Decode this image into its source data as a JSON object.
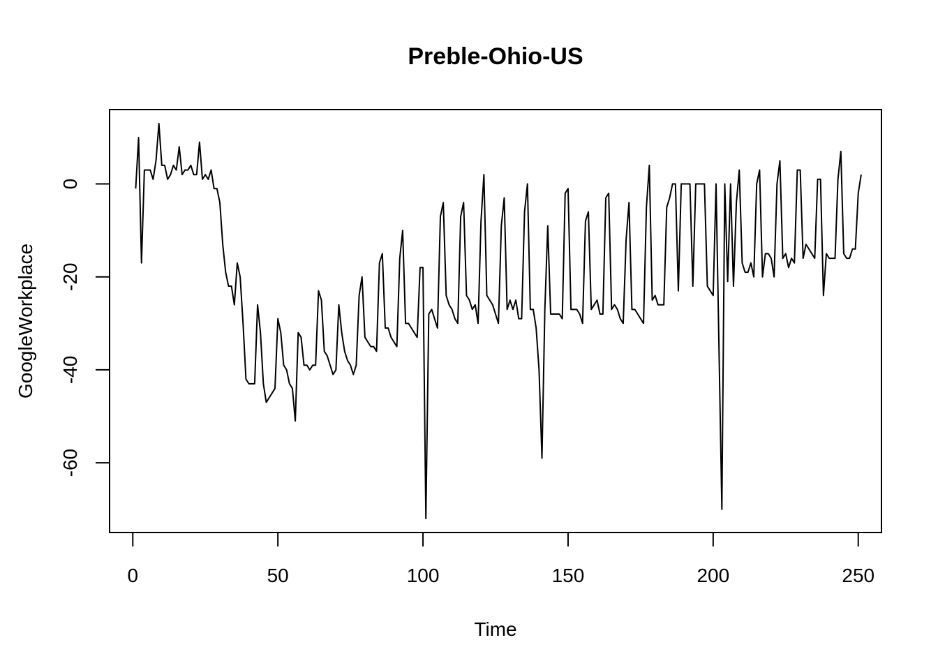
{
  "chart_data": {
    "type": "line",
    "title": "Preble-Ohio-US",
    "xlabel": "Time",
    "ylabel": "GoogleWorkplace",
    "xlim": [
      -8,
      258
    ],
    "ylim": [
      -75,
      16
    ],
    "x_ticks": [
      0,
      50,
      100,
      150,
      200,
      250
    ],
    "y_ticks": [
      -60,
      -40,
      -20,
      0
    ],
    "x_tick_labels": [
      "0",
      "50",
      "100",
      "150",
      "200",
      "250"
    ],
    "y_tick_labels": [
      "-60",
      "-40",
      "-20",
      "0"
    ],
    "grid": false,
    "legend": "none",
    "line_color": "#000000",
    "x_start": 1,
    "series": [
      {
        "values": [
          -1,
          10,
          -17,
          3,
          3,
          3,
          1,
          5,
          13,
          4,
          4,
          1,
          2,
          4,
          3,
          8,
          2,
          3,
          3,
          4,
          2,
          2,
          9,
          1,
          2,
          1,
          3,
          -1,
          -1,
          -4,
          -13,
          -19,
          -22,
          -22,
          -26,
          -17,
          -20,
          -30,
          -42,
          -43,
          -43,
          -43,
          -26,
          -32,
          -43,
          -47,
          -46,
          -45,
          -44,
          -29,
          -32,
          -39,
          -40,
          -43,
          -44,
          -51,
          -32,
          -33,
          -39,
          -39,
          -40,
          -39,
          -39,
          -23,
          -25,
          -36,
          -37,
          -39,
          -41,
          -40,
          -26,
          -32,
          -36,
          -38,
          -39,
          -41,
          -39,
          -24,
          -20,
          -33,
          -34,
          -35,
          -35,
          -36,
          -17,
          -15,
          -31,
          -31,
          -33,
          -34,
          -35,
          -16,
          -10,
          -30,
          -30,
          -31,
          -32,
          -33,
          -18,
          -18,
          -72,
          -28,
          -27,
          -29,
          -31,
          -7,
          -4,
          -24,
          -26,
          -27,
          -29,
          -30,
          -7,
          -4,
          -24,
          -25,
          -27,
          -26,
          -30,
          -8,
          2,
          -24,
          -25,
          -26,
          -28,
          -30,
          -9,
          -3,
          -27,
          -25,
          -27,
          -25,
          -29,
          -29,
          -6,
          0,
          -27,
          -27,
          -31,
          -40,
          -59,
          -27,
          -9,
          -28,
          -28,
          -28,
          -28,
          -29,
          -2,
          -1,
          -27,
          -27,
          -27,
          -28,
          -30,
          -8,
          -6,
          -27,
          -26,
          -25,
          -28,
          -28,
          -3,
          -2,
          -27,
          -26,
          -27,
          -29,
          -30,
          -12,
          -4,
          -27,
          -27,
          -28,
          -29,
          -30,
          -5,
          4,
          -25,
          -24,
          -26,
          -26,
          -26,
          -5,
          -3,
          0,
          0,
          -23,
          0,
          0,
          0,
          0,
          -22,
          0,
          0,
          0,
          0,
          -22,
          -23,
          -24,
          0,
          -35,
          -70,
          0,
          -21,
          0,
          -22,
          -4,
          3,
          -17,
          -19,
          -19,
          -17,
          -20,
          0,
          3,
          -20,
          -15,
          -15,
          -16,
          -20,
          0,
          5,
          -16,
          -15,
          -18,
          -16,
          -17,
          3,
          3,
          -16,
          -13,
          -14,
          -15,
          -16,
          1,
          1,
          -24,
          -15,
          -16,
          -16,
          -16,
          1,
          7,
          -15,
          -16,
          -16,
          -14,
          -14,
          -2,
          2
        ]
      }
    ]
  }
}
